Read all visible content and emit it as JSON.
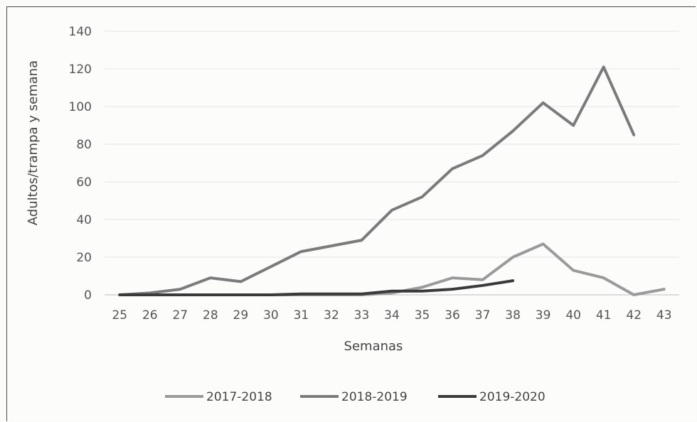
{
  "chart_data": {
    "type": "line",
    "xlabel": "Semanas",
    "ylabel": "Adultos/trampa y semana",
    "ylim": [
      0,
      140
    ],
    "yticks": [
      "0",
      "20",
      "40",
      "60",
      "80",
      "100",
      "120",
      "140"
    ],
    "categories": [
      "25",
      "26",
      "27",
      "28",
      "29",
      "30",
      "31",
      "32",
      "33",
      "34",
      "35",
      "36",
      "37",
      "38",
      "39",
      "40",
      "41",
      "42",
      "43"
    ],
    "grid": true,
    "legend_position": "bottom",
    "series": [
      {
        "name": "2017-2018",
        "color": "#9a9a9a",
        "values": [
          0,
          0,
          0,
          0,
          0,
          0,
          0,
          0,
          0,
          1,
          4,
          9,
          8,
          20,
          27,
          13,
          9,
          0,
          3
        ]
      },
      {
        "name": "2018-2019",
        "color": "#7b7b7b",
        "values": [
          0,
          1,
          3,
          9,
          7,
          15,
          23,
          26,
          29,
          45,
          52,
          67,
          74,
          87,
          102,
          90,
          121,
          85,
          null
        ]
      },
      {
        "name": "2019-2020",
        "color": "#3a3a3a",
        "values": [
          0,
          0,
          0,
          0,
          0,
          0,
          0.5,
          0.5,
          0.5,
          2,
          2,
          3,
          5,
          7.5,
          null,
          null,
          null,
          null,
          null
        ]
      }
    ]
  }
}
